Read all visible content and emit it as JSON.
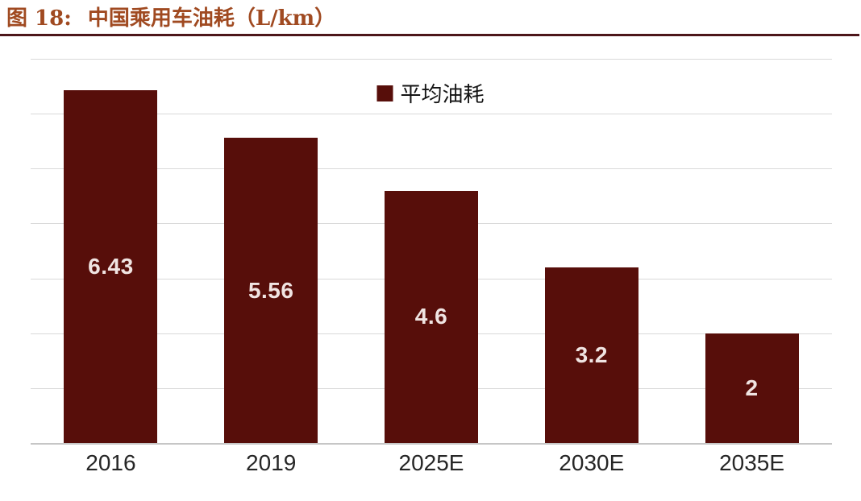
{
  "header": {
    "title_prefix": "图 18:",
    "title_text": "中国乘用车油耗（L/km）"
  },
  "legend": {
    "label": "平均油耗"
  },
  "colors": {
    "background": "#ffffff",
    "bar": "#570e0a",
    "title": "#a04a21",
    "rule": "#4d161a",
    "grid": "#d9d9d9",
    "axis": "#c6c6c6",
    "value_label": "#f0e4e2",
    "tick_label": "#262626"
  },
  "chart_data": {
    "type": "bar",
    "title": "中国乘用车油耗（L/km）",
    "categories": [
      "2016",
      "2019",
      "2025E",
      "2030E",
      "2035E"
    ],
    "values": [
      6.43,
      5.56,
      4.6,
      3.2,
      2
    ],
    "value_labels": [
      "6.43",
      "5.56",
      "4.6",
      "3.2",
      "2"
    ],
    "series_name": "平均油耗",
    "xlabel": "",
    "ylabel": "",
    "ylim": [
      0,
      7
    ],
    "grid": "horizontal, every 1 unit, no y tick labels",
    "legend_position": "top-center",
    "value_labels_position": "centered inside bars"
  }
}
